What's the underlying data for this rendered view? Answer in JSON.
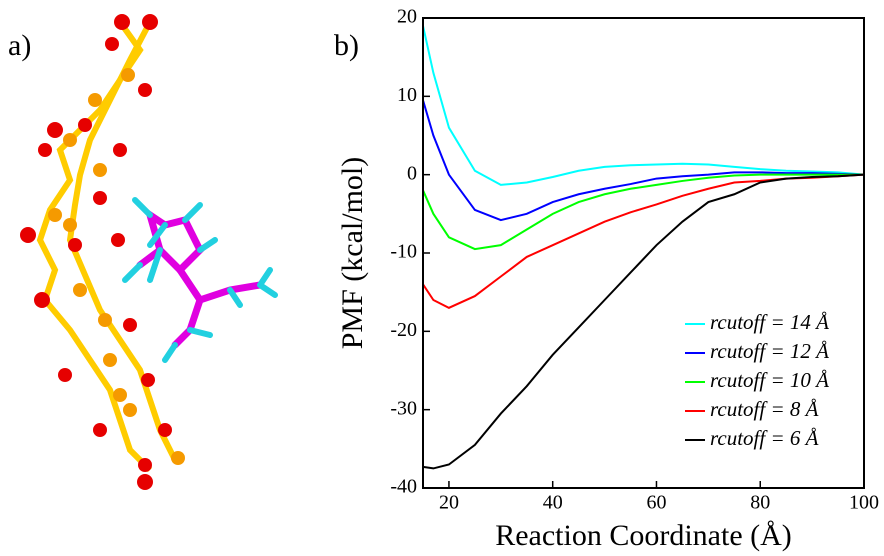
{
  "panel_a_label": "a)",
  "chart_data": {
    "type": "line",
    "panel_label": "b)",
    "x_label": "Reaction Coordinate (Å)",
    "y_label": "PMF (kcal/mol)",
    "x": [
      15,
      17,
      20,
      25,
      30,
      35,
      40,
      45,
      50,
      55,
      60,
      65,
      70,
      75,
      80,
      85,
      90,
      95,
      100
    ],
    "series": [
      {
        "name": "rcutoff = 14 Å",
        "color": "#00ffff",
        "values": [
          19,
          13,
          6,
          0.5,
          -1.3,
          -1,
          -0.3,
          0.5,
          1,
          1.2,
          1.3,
          1.4,
          1.3,
          1,
          0.7,
          0.5,
          0.4,
          0.3,
          0
        ]
      },
      {
        "name": "rcutoff = 12 Å",
        "color": "#0000ff",
        "values": [
          9.5,
          5,
          0,
          -4.5,
          -5.8,
          -5,
          -3.5,
          -2.5,
          -1.8,
          -1.2,
          -0.5,
          -0.2,
          0,
          0.3,
          0.3,
          0.2,
          0.2,
          0.1,
          0
        ]
      },
      {
        "name": "rcutoff = 10 Å",
        "color": "#00ff00",
        "values": [
          -2,
          -5,
          -8,
          -9.5,
          -9,
          -7,
          -5,
          -3.5,
          -2.5,
          -1.8,
          -1.3,
          -0.8,
          -0.4,
          -0.1,
          0,
          0,
          0,
          0,
          0
        ]
      },
      {
        "name": "rcutoff = 8 Å",
        "color": "#ff0000",
        "values": [
          -14,
          -16,
          -17,
          -15.5,
          -13,
          -10.5,
          -9,
          -7.5,
          -6,
          -4.8,
          -3.8,
          -2.7,
          -1.8,
          -1,
          -0.8,
          -0.5,
          -0.4,
          -0.2,
          0
        ]
      },
      {
        "name": "rcutoff = 6 Å",
        "color": "#000000",
        "values": [
          -37.3,
          -37.5,
          -37,
          -34.5,
          -30.5,
          -27,
          -23,
          -19.5,
          -16,
          -12.5,
          -9,
          -6,
          -3.5,
          -2.5,
          -1,
          -0.5,
          -0.3,
          -0.2,
          0
        ]
      }
    ],
    "xlim": [
      15,
      100
    ],
    "ylim": [
      -40,
      20
    ],
    "xticks": [
      20,
      40,
      60,
      80,
      100
    ],
    "yticks": [
      -40,
      -30,
      -20,
      -10,
      0,
      10,
      20
    ],
    "legend": "lower right"
  }
}
